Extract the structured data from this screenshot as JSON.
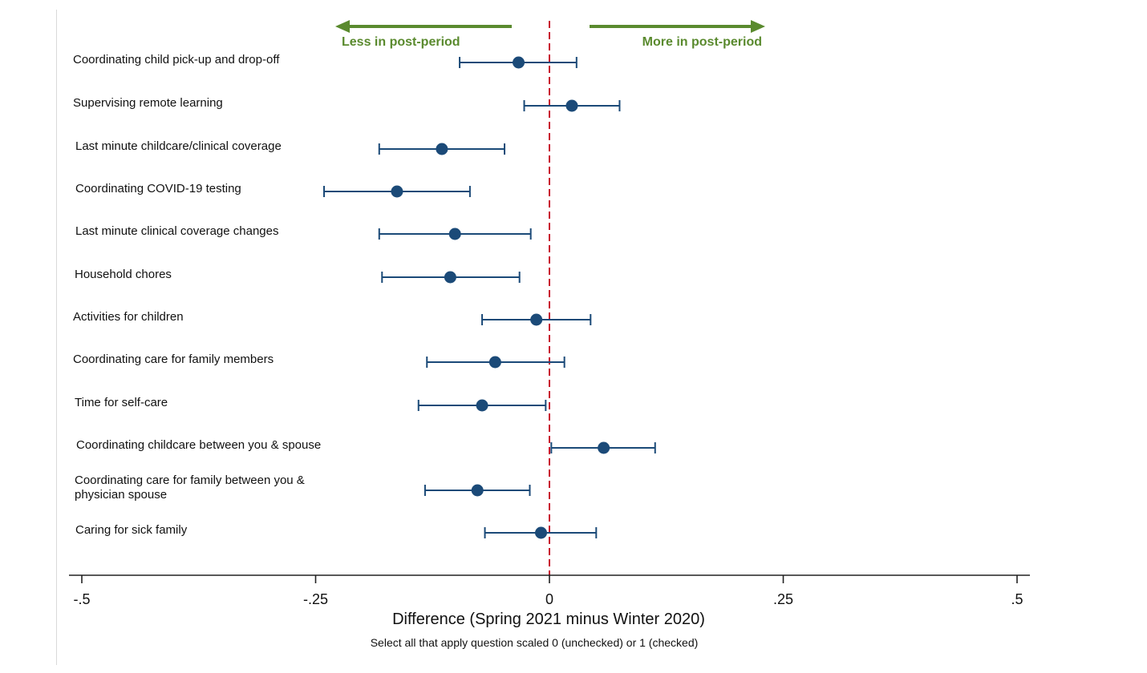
{
  "chart_data": {
    "type": "scatter",
    "subtype": "coefficient-plot-with-confidence-intervals",
    "orientation": "horizontal",
    "title": "",
    "xlabel": "Difference (Spring 2021 minus Winter 2020)",
    "x_note": "Select all that apply question scaled 0 (unchecked) or 1 (checked)",
    "xlim": [
      -0.5,
      0.5
    ],
    "x_ticks": [
      {
        "value": -0.5,
        "label": "-.5"
      },
      {
        "value": -0.25,
        "label": "-.25"
      },
      {
        "value": 0,
        "label": "0"
      },
      {
        "value": 0.25,
        "label": ".25"
      },
      {
        "value": 0.5,
        "label": ".5"
      }
    ],
    "reference_line": {
      "x": 0,
      "style": "dashed",
      "color": "#c8102e"
    },
    "direction_annotations": {
      "left": "Less in post-period",
      "right": "More in post-period",
      "color": "#5a8a2e"
    },
    "marker_color": "#1b4a78",
    "series": [
      {
        "name": "Difference",
        "points": [
          {
            "label": [
              "Coordinating child pick-up and drop-off"
            ],
            "estimate": -0.033,
            "ci_low": -0.096,
            "ci_high": 0.029
          },
          {
            "label": [
              "Supervising remote learning"
            ],
            "estimate": 0.024,
            "ci_low": -0.027,
            "ci_high": 0.075
          },
          {
            "label": [
              "Last minute childcare/clinical coverage"
            ],
            "estimate": -0.115,
            "ci_low": -0.182,
            "ci_high": -0.048
          },
          {
            "label": [
              "Coordinating COVID-19 testing"
            ],
            "estimate": -0.163,
            "ci_low": -0.241,
            "ci_high": -0.085
          },
          {
            "label": [
              "Last minute clinical coverage changes"
            ],
            "estimate": -0.101,
            "ci_low": -0.182,
            "ci_high": -0.02
          },
          {
            "label": [
              "Household chores"
            ],
            "estimate": -0.106,
            "ci_low": -0.179,
            "ci_high": -0.032
          },
          {
            "label": [
              "Activities for children"
            ],
            "estimate": -0.014,
            "ci_low": -0.072,
            "ci_high": 0.044
          },
          {
            "label": [
              "Coordinating care for family members"
            ],
            "estimate": -0.058,
            "ci_low": -0.131,
            "ci_high": 0.016
          },
          {
            "label": [
              "Time for self-care"
            ],
            "estimate": -0.072,
            "ci_low": -0.14,
            "ci_high": -0.004
          },
          {
            "label": [
              "Coordinating childcare between you & spouse"
            ],
            "estimate": 0.058,
            "ci_low": 0.002,
            "ci_high": 0.113
          },
          {
            "label": [
              "Coordinating care for family between you &",
              "physician spouse"
            ],
            "estimate": -0.077,
            "ci_low": -0.133,
            "ci_high": -0.021
          },
          {
            "label": [
              "Caring for sick family"
            ],
            "estimate": -0.009,
            "ci_low": -0.069,
            "ci_high": 0.05
          }
        ]
      }
    ]
  }
}
